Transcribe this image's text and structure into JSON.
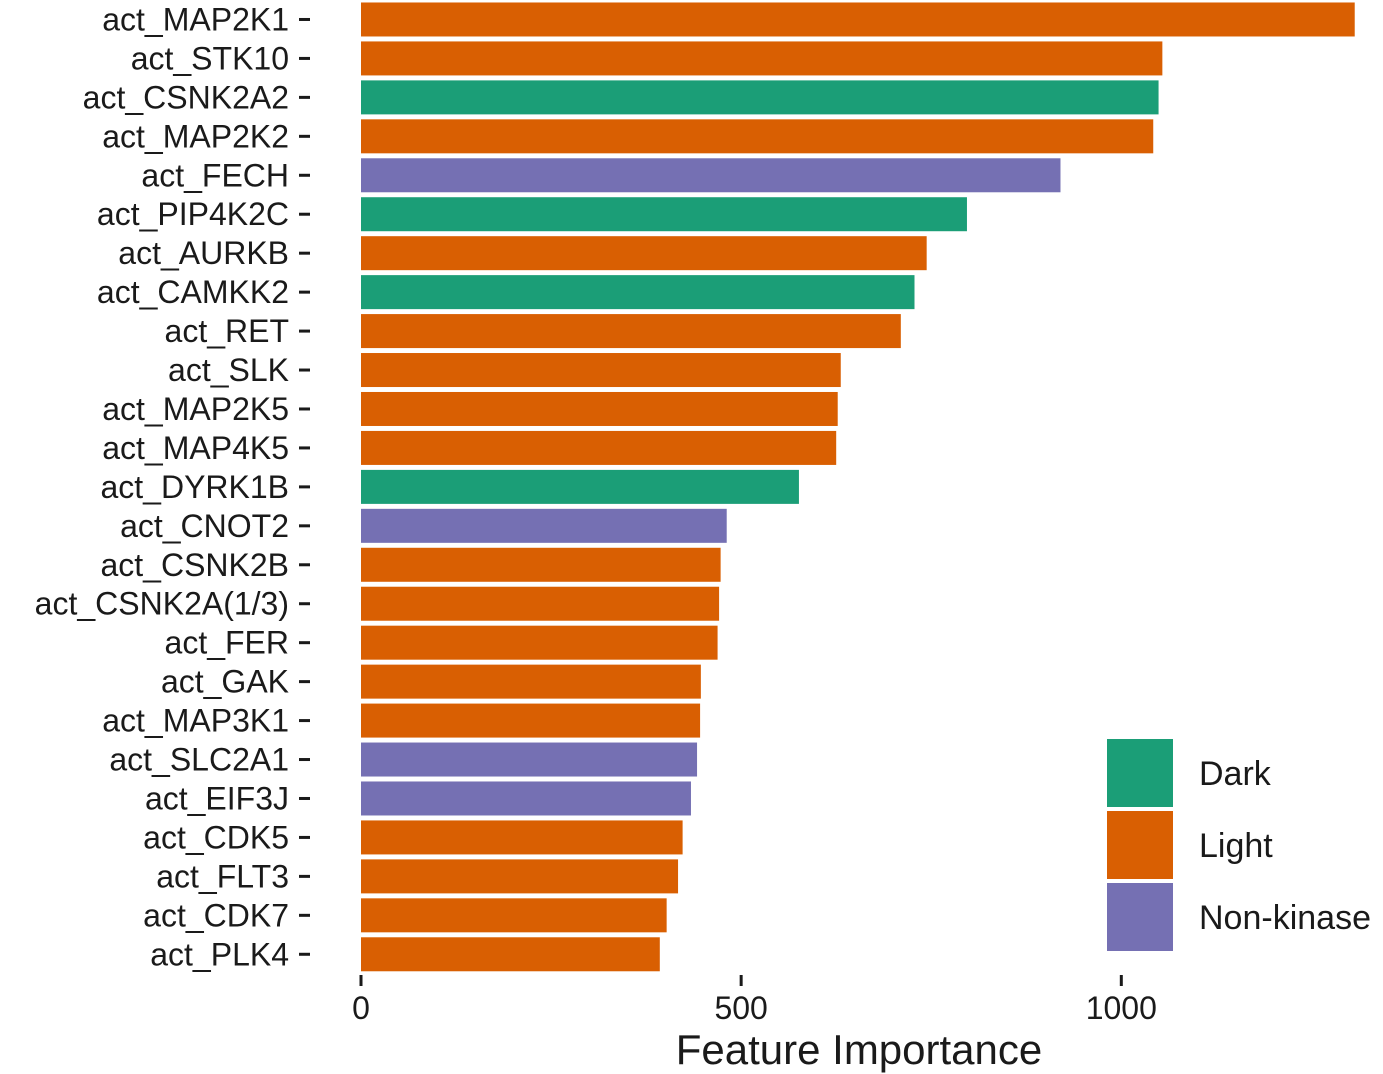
{
  "chart_data": {
    "type": "bar",
    "orientation": "horizontal",
    "title": "",
    "xlabel": "Feature Importance",
    "ylabel": "",
    "xlim": [
      0,
      1310
    ],
    "x_ticks": [
      0,
      500,
      1000
    ],
    "grid": false,
    "legend_position": "bottom-right",
    "legend": [
      {
        "name": "Dark",
        "color": "#1b9e77"
      },
      {
        "name": "Light",
        "color": "#d95f02"
      },
      {
        "name": "Non-kinase",
        "color": "#7570b3"
      }
    ],
    "bars": [
      {
        "label": "act_MAP2K1",
        "value": 1307,
        "group": "Light"
      },
      {
        "label": "act_STK10",
        "value": 1054,
        "group": "Light"
      },
      {
        "label": "act_CSNK2A2",
        "value": 1049,
        "group": "Dark"
      },
      {
        "label": "act_MAP2K2",
        "value": 1042,
        "group": "Light"
      },
      {
        "label": "act_FECH",
        "value": 920,
        "group": "Non-kinase"
      },
      {
        "label": "act_PIP4K2C",
        "value": 797,
        "group": "Dark"
      },
      {
        "label": "act_AURKB",
        "value": 744,
        "group": "Light"
      },
      {
        "label": "act_CAMKK2",
        "value": 728,
        "group": "Dark"
      },
      {
        "label": "act_RET",
        "value": 710,
        "group": "Light"
      },
      {
        "label": "act_SLK",
        "value": 631,
        "group": "Light"
      },
      {
        "label": "act_MAP2K5",
        "value": 627,
        "group": "Light"
      },
      {
        "label": "act_MAP4K5",
        "value": 625,
        "group": "Light"
      },
      {
        "label": "act_DYRK1B",
        "value": 576,
        "group": "Dark"
      },
      {
        "label": "act_CNOT2",
        "value": 481,
        "group": "Non-kinase"
      },
      {
        "label": "act_CSNK2B",
        "value": 473,
        "group": "Light"
      },
      {
        "label": "act_CSNK2A(1/3)",
        "value": 471,
        "group": "Light"
      },
      {
        "label": "act_FER",
        "value": 469,
        "group": "Light"
      },
      {
        "label": "act_GAK",
        "value": 447,
        "group": "Light"
      },
      {
        "label": "act_MAP3K1",
        "value": 446,
        "group": "Light"
      },
      {
        "label": "act_SLC2A1",
        "value": 442,
        "group": "Non-kinase"
      },
      {
        "label": "act_EIF3J",
        "value": 434,
        "group": "Non-kinase"
      },
      {
        "label": "act_CDK5",
        "value": 423,
        "group": "Light"
      },
      {
        "label": "act_FLT3",
        "value": 417,
        "group": "Light"
      },
      {
        "label": "act_CDK7",
        "value": 402,
        "group": "Light"
      },
      {
        "label": "act_PLK4",
        "value": 393,
        "group": "Light"
      }
    ]
  }
}
